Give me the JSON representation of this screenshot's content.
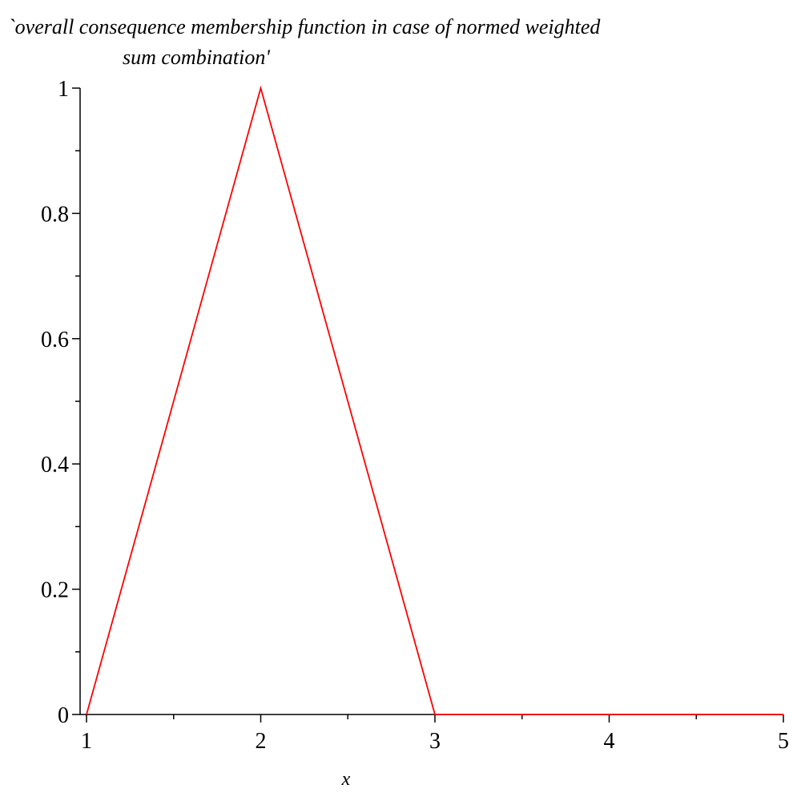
{
  "chart_data": {
    "type": "line",
    "title_lines": [
      "`overall consequence membership function in case of normed weighted",
      "sum combination'"
    ],
    "xlabel": "x",
    "ylabel": "",
    "xlim": [
      1,
      5
    ],
    "ylim": [
      0,
      1
    ],
    "xticks": [
      1,
      2,
      3,
      4,
      5
    ],
    "xtick_labels": [
      "1",
      "2",
      "3",
      "4",
      "5"
    ],
    "x_minor_ticks": [
      1.5,
      2.5,
      3.5,
      4.5
    ],
    "yticks": [
      0,
      0.2,
      0.4,
      0.6,
      0.8,
      1
    ],
    "ytick_labels": [
      "0",
      "0.2",
      "0.4",
      "0.6",
      "0.8",
      "1"
    ],
    "y_minor_ticks": [
      0.1,
      0.3,
      0.5,
      0.7,
      0.9
    ],
    "grid": false,
    "series": [
      {
        "x": [
          1,
          2,
          3,
          5
        ],
        "y": [
          0,
          1,
          0,
          0
        ],
        "color": "#ff0000"
      }
    ],
    "axis_color": "#000000"
  }
}
